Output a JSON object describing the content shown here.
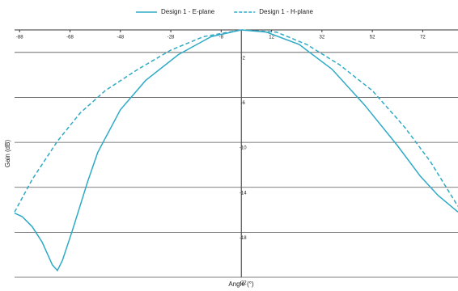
{
  "chart_data": {
    "type": "line",
    "xlabel": "Angle (°)",
    "ylabel": "Gain (dB)",
    "xlim": [
      -90,
      86
    ],
    "ylim": [
      -22,
      0
    ],
    "xticks": [
      -88,
      -68,
      -48,
      -28,
      -8,
      12,
      32,
      52,
      72
    ],
    "yticks": [
      -2,
      -6,
      -10,
      -14,
      -18,
      -22
    ],
    "grid": true,
    "legend": "top",
    "series": [
      {
        "name": "Design 1 - E-plane",
        "color": "#2eaac6",
        "dash": false,
        "x": [
          -90,
          -87,
          -83,
          -79,
          -75,
          -73,
          -71,
          -67,
          -61,
          -57,
          -48,
          -38,
          -25,
          -12,
          0,
          10,
          23,
          36,
          49,
          62,
          71,
          78,
          86
        ],
        "values": [
          -16.3,
          -16.6,
          -17.5,
          -18.9,
          -20.9,
          -21.4,
          -20.5,
          -17.8,
          -13.5,
          -10.9,
          -7.1,
          -4.5,
          -2.2,
          -0.6,
          0,
          -0.2,
          -1.3,
          -3.5,
          -6.7,
          -10.3,
          -13,
          -14.7,
          -16.2
        ]
      },
      {
        "name": "Design 1 - H-plane",
        "color": "#2eaac6",
        "dash": true,
        "x": [
          -90,
          -83,
          -73,
          -64,
          -54,
          -41,
          -28,
          -15,
          0,
          14,
          26,
          39,
          52,
          65,
          75,
          86
        ],
        "values": [
          -16.2,
          -13.3,
          -9.9,
          -7.4,
          -5.4,
          -3.5,
          -1.8,
          -0.6,
          0,
          -0.2,
          -1.3,
          -3.1,
          -5.4,
          -8.7,
          -11.7,
          -15.7
        ]
      }
    ]
  }
}
